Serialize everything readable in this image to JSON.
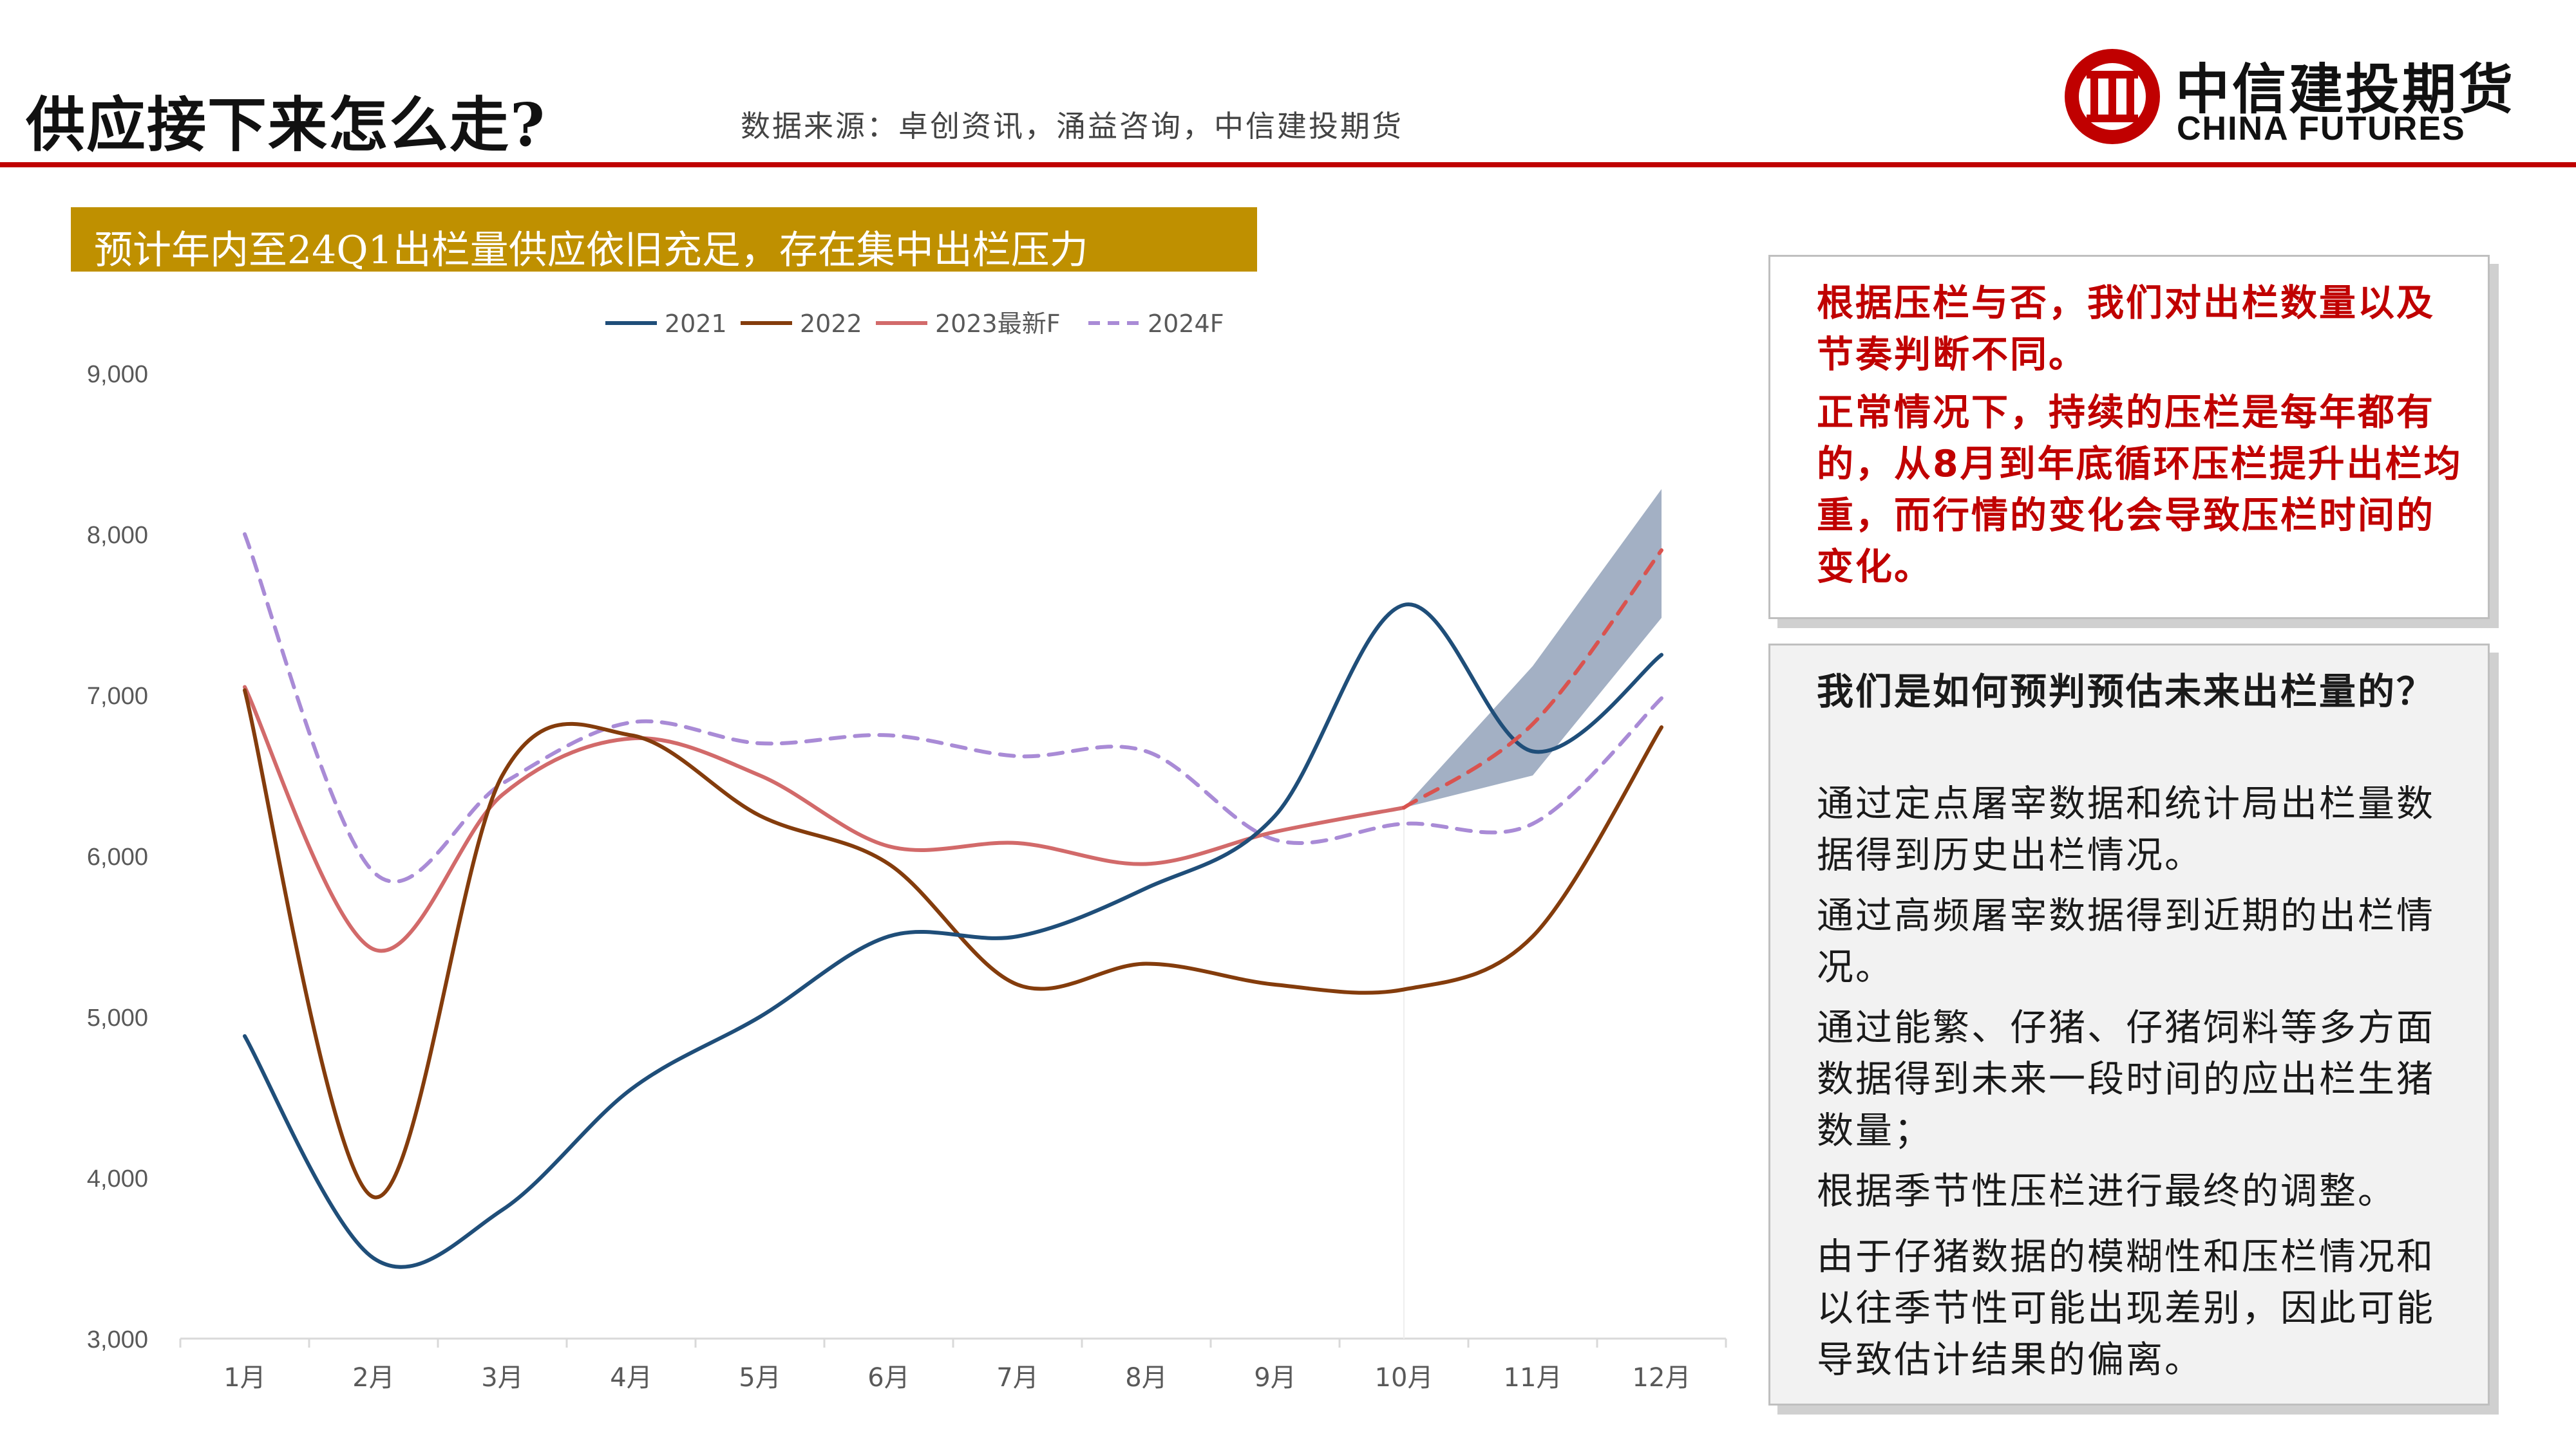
{
  "header": {
    "title": "供应接下来怎么走?",
    "source": "数据来源：卓创资讯，涌益咨询，中信建投期货",
    "logo_cn": "中信建投期货",
    "logo_en": "CHINA FUTURES"
  },
  "banner": {
    "text": "预计年内至24Q1出栏量供应依旧充足，存在集中出栏压力"
  },
  "colors": {
    "accent_red": "#c00000",
    "banner_gold": "#bf9000",
    "s2021": "#1f4e79",
    "s2022": "#843c0c",
    "s2023": "#d26a6a",
    "s2024": "#a98bd6",
    "band": "#8496b0"
  },
  "chart_data": {
    "type": "line",
    "categories": [
      "1月",
      "2月",
      "3月",
      "4月",
      "5月",
      "6月",
      "7月",
      "8月",
      "9月",
      "10月",
      "11月",
      "12月"
    ],
    "ylim": [
      3000,
      9000
    ],
    "yticks": [
      "3,000",
      "4,000",
      "5,000",
      "6,000",
      "7,000",
      "8,000",
      "9,000"
    ],
    "legend": "top-center",
    "series": [
      {
        "name": "2021",
        "style": "solid",
        "color": "#1f4e79",
        "values": [
          4880,
          3500,
          3800,
          4550,
          5000,
          5500,
          5500,
          5800,
          6250,
          7560,
          6650,
          7250
        ]
      },
      {
        "name": "2022",
        "style": "solid",
        "color": "#843c0c",
        "values": [
          7030,
          3880,
          6500,
          6750,
          6250,
          5950,
          5200,
          5330,
          5200,
          5170,
          5500,
          6800
        ]
      },
      {
        "name": "2023最新F",
        "style": "solid",
        "color": "#d26a6a",
        "values": [
          7050,
          5420,
          6380,
          6730,
          6500,
          6060,
          6080,
          5950,
          6150,
          6300,
          null,
          null
        ]
      },
      {
        "name": "2024F",
        "style": "dashed",
        "color": "#a98bd6",
        "values": [
          8000,
          5900,
          6450,
          6830,
          6700,
          6750,
          6620,
          6650,
          6100,
          6200,
          6200,
          6980
        ]
      },
      {
        "name": "",
        "style": "dashed",
        "color": "#d9534f",
        "legend": false,
        "values": [
          null,
          null,
          null,
          null,
          null,
          null,
          null,
          null,
          null,
          6300,
          6820,
          7900
        ]
      }
    ],
    "band": {
      "x_start": 9,
      "upper": [
        6300,
        7180,
        8280
      ],
      "lower": [
        6300,
        6500,
        7480
      ]
    }
  },
  "notes": {
    "box1": [
      "根据压栏与否，我们对出栏数量以及节奏判断不同。",
      "正常情况下，持续的压栏是每年都有的，从8月到年底循环压栏提升出栏均重，而行情的变化会导致压栏时间的变化。"
    ],
    "box2_title": "我们是如何预判预估未来出栏量的？",
    "box2": [
      "通过定点屠宰数据和统计局出栏量数据得到历史出栏情况。",
      "通过高频屠宰数据得到近期的出栏情况。",
      "通过能繁、仔猪、仔猪饲料等多方面数据得到未来一段时间的应出栏生猪数量；",
      "根据季节性压栏进行最终的调整。",
      "由于仔猪数据的模糊性和压栏情况和以往季节性可能出现差别，因此可能导致估计结果的偏离。"
    ]
  }
}
